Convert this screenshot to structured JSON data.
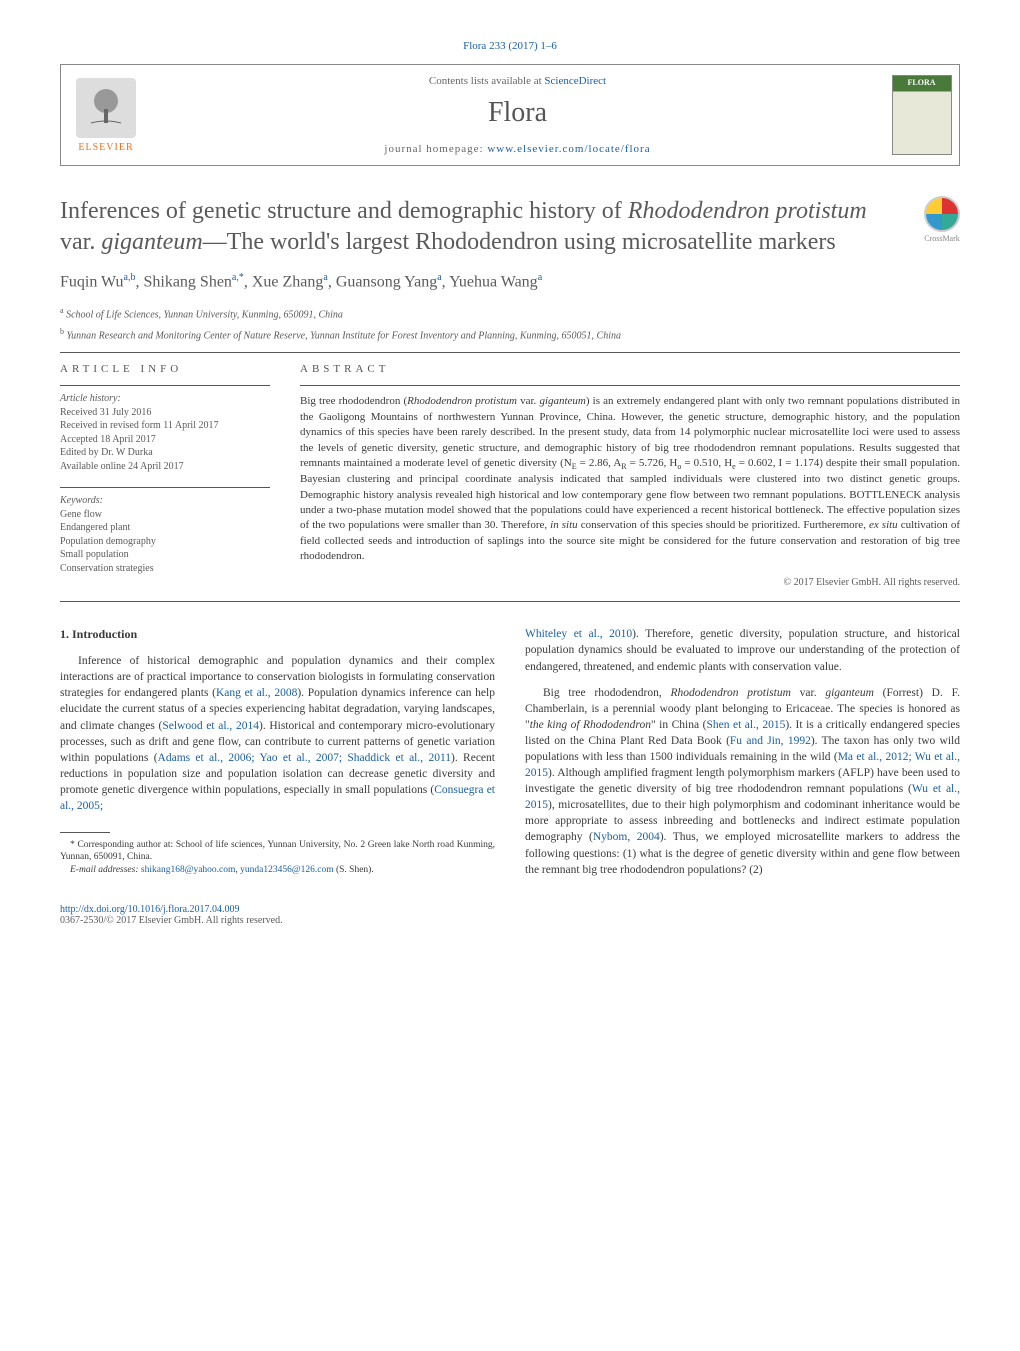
{
  "journal_ref": "Flora 233 (2017) 1–6",
  "header": {
    "contents_text": "Contents lists available at ",
    "contents_link": "ScienceDirect",
    "journal_name": "Flora",
    "homepage_label": "journal homepage: ",
    "homepage_url": "www.elsevier.com/locate/flora",
    "publisher": "ELSEVIER",
    "cover_label": "FLORA"
  },
  "title_parts": {
    "pre": "Inferences of genetic structure and demographic history of ",
    "species": "Rhododendron protistum",
    "var": " var. ",
    "species2": "giganteum",
    "post": "—The world's largest Rhododendron using microsatellite markers"
  },
  "crossmark": "CrossMark",
  "authors_html": "Fuqin Wu<sup class='sup'>a,b</sup>, Shikang Shen<sup class='sup'>a,*</sup>, Xue Zhang<sup class='sup'>a</sup>, Guansong Yang<sup class='sup'>a</sup>, Yuehua Wang<sup class='sup'>a</sup>",
  "affiliations": [
    {
      "sup": "a",
      "text": "School of Life Sciences, Yunnan University, Kunming, 650091, China"
    },
    {
      "sup": "b",
      "text": "Yunnan Research and Monitoring Center of Nature Reserve, Yunnan Institute for Forest Inventory and Planning, Kunming, 650051, China"
    }
  ],
  "article_info": {
    "heading": "article info",
    "history_label": "Article history:",
    "history": [
      "Received 31 July 2016",
      "Received in revised form 11 April 2017",
      "Accepted 18 April 2017",
      "Edited by Dr. W Durka",
      "Available online 24 April 2017"
    ],
    "keywords_label": "Keywords:",
    "keywords": [
      "Gene flow",
      "Endangered plant",
      "Population demography",
      "Small population",
      "Conservation strategies"
    ]
  },
  "abstract": {
    "heading": "abstract",
    "text_html": "Big tree rhododendron (<span class='species'>Rhododendron protistum</span> var. <span class='species'>giganteum</span>) is an extremely endangered plant with only two remnant populations distributed in the Gaoligong Mountains of northwestern Yunnan Province, China. However, the genetic structure, demographic history, and the population dynamics of this species have been rarely described. In the present study, data from 14 polymorphic nuclear microsatellite loci were used to assess the levels of genetic diversity, genetic structure, and demographic history of big tree rhododendron remnant populations. Results suggested that remnants maintained a moderate level of genetic diversity (N<span class='sub'>E</span> = 2.86, A<span class='sub'>R</span> = 5.726, H<span class='sub'>o</span> = 0.510, H<span class='sub'>e</span> = 0.602, I = 1.174) despite their small population. Bayesian clustering and principal coordinate analysis indicated that sampled individuals were clustered into two distinct genetic groups. Demographic history analysis revealed high historical and low contemporary gene flow between two remnant populations. BOTTLENECK analysis under a two-phase mutation model showed that the populations could have experienced a recent historical bottleneck. The effective population sizes of the two populations were smaller than 30. Therefore, <span class='species'>in situ</span> conservation of this species should be prioritized. Furtheremore, <span class='species'>ex situ</span> cultivation of field collected seeds and introduction of saplings into the source site might be considered for the future conservation and restoration of big tree rhododendron.",
    "copyright": "© 2017 Elsevier GmbH. All rights reserved."
  },
  "intro": {
    "heading": "1. Introduction",
    "p1_html": "Inference of historical demographic and population dynamics and their complex interactions are of practical importance to conservation biologists in formulating conservation strategies for endangered plants (<span class='ref-link'>Kang et al., 2008</span>). Population dynamics inference can help elucidate the current status of a species experiencing habitat degradation, varying landscapes, and climate changes (<span class='ref-link'>Selwood et al., 2014</span>). Historical and contemporary micro-evolutionary processes, such as drift and gene flow, can contribute to current patterns of genetic variation within populations (<span class='ref-link'>Adams et al., 2006; Yao et al., 2007; Shaddick et al., 2011</span>). Recent reductions in population size and population isolation can decrease genetic diversity and promote genetic divergence within populations, especially in small populations (<span class='ref-link'>Consuegra et al., 2005;</span>",
    "p2_html": "<span class='ref-link'>Whiteley et al., 2010</span>). Therefore, genetic diversity, population structure, and historical population dynamics should be evaluated to improve our understanding of the protection of endangered, threatened, and endemic plants with conservation value.",
    "p3_html": "Big tree rhododendron, <span class='species'>Rhododendron protistum</span> var. <span class='species'>giganteum</span> (Forrest) D. F. Chamberlain, is a perennial woody plant belonging to Ericaceae. The species is honored as &quot;<span class='species'>the king of Rhododendron</span>&quot; in China (<span class='ref-link'>Shen et al., 2015</span>). It is a critically endangered species listed on the China Plant Red Data Book (<span class='ref-link'>Fu and Jin, 1992</span>). The taxon has only two wild populations with less than 1500 individuals remaining in the wild (<span class='ref-link'>Ma et al., 2012; Wu et al., 2015</span>). Although amplified fragment length polymorphism markers (AFLP) have been used to investigate the genetic diversity of big tree rhododendron remnant populations (<span class='ref-link'>Wu et al., 2015</span>), microsatellites, due to their high polymorphism and codominant inheritance would be more appropriate to assess inbreeding and bottlenecks and indirect estimate population demography (<span class='ref-link'>Nybom, 2004</span>). Thus, we employed microsatellite markers to address the following questions: (1) what is the degree of genetic diversity within and gene flow between the remnant big tree rhododendron populations? (2)"
  },
  "footnote": {
    "corr": "* Corresponding author at: School of life sciences, Yunnan University, No. 2 Green lake North road Kunming, Yunnan, 650091, China.",
    "email_label": "E-mail addresses: ",
    "email1": "shikang168@yahoo.com",
    "sep": ", ",
    "email2": "yunda123456@126.com",
    "suffix": " (S. Shen)."
  },
  "footer": {
    "doi": "http://dx.doi.org/10.1016/j.flora.2017.04.009",
    "issn_copy": "0367-2530/© 2017 Elsevier GmbH. All rights reserved."
  },
  "colors": {
    "link": "#1a5f9e",
    "text": "#3a3a3a",
    "heading": "#5a5a5a",
    "orange": "#e37222"
  }
}
